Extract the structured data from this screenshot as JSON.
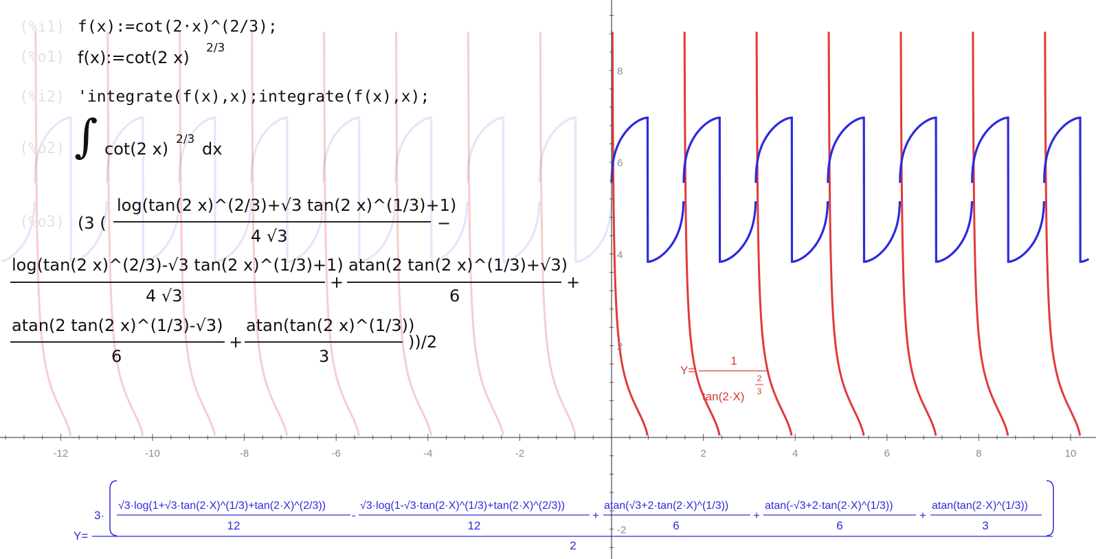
{
  "chart_data": {
    "type": "line",
    "xlim": [
      -13.3,
      10.4
    ],
    "ylim": [
      -2.5,
      9.5
    ],
    "x_ticks": [
      -12,
      -10,
      -8,
      -6,
      -4,
      -2,
      2,
      4,
      6,
      8,
      10
    ],
    "y_ticks": [
      -2,
      2,
      4,
      6,
      8
    ],
    "grid": false,
    "series": [
      {
        "name": "Y=1/tan(2·X)^(2/3)",
        "color": "#e03a3a",
        "function": "cot(2x)^(2/3)"
      },
      {
        "name": "Y=3·(…)/2",
        "color": "#2a2ae0",
        "function": "antiderivative of cot(2x)^(2/3)"
      }
    ],
    "labels": {
      "red_formula": {
        "prefix": "Y=",
        "numerator": "1",
        "denominator": "tan(2·X)",
        "exp_num": "2",
        "exp_den": "3"
      },
      "blue_formula": {
        "prefix": "Y=",
        "coef": "3·",
        "term1": "√3·log(1+√3·tan(2·X)^(1/3)+tan(2·X)^(2/3))",
        "term2": "√3·log(1-√3·tan(2·X)^(1/3)+tan(2·X)^(2/3))",
        "term3": "atan(√3+2·tan(2·X)^(1/3))",
        "term4": "atan(-√3+2·tan(2·X)^(1/3))",
        "term5": "atan(tan(2·X)^(1/3))",
        "den12": "12",
        "den6": "6",
        "den3": "3",
        "den2": "2"
      }
    }
  },
  "worksheet": {
    "i1_label": "(%i1)",
    "i1_code": "f(x):=cot(2·x)^(2/3);",
    "o1_label": "(%o1)",
    "o1_text": "f(x):=cot(2 x)",
    "o1_exp": "2/3",
    "i2_label": "(%i2)",
    "i2_code": "'integrate(f(x),x);integrate(f(x),x);",
    "o2_label": "(%o2)",
    "o2_text": "cot(2 x)",
    "o2_exp": "2/3",
    "o2_dx": "dx",
    "o3_label": "(%o3)",
    "o3_open": "(3 (",
    "o3_num1": "log(tan(2 x)^(2/3)+√3 tan(2 x)^(1/3)+1)",
    "o3_den1": "4 √3",
    "o3_num2": "log(tan(2 x)^(2/3)-√3 tan(2 x)^(1/3)+1)",
    "o3_den2": "4 √3",
    "o3_num3": "atan(2 tan(2 x)^(1/3)+√3)",
    "o3_den3": "6",
    "o3_num4": "atan(2 tan(2 x)^(1/3)-√3)",
    "o3_den4": "6",
    "o3_num5": "atan(tan(2 x)^(1/3))",
    "o3_den5": "3",
    "o3_close": "))/2"
  }
}
